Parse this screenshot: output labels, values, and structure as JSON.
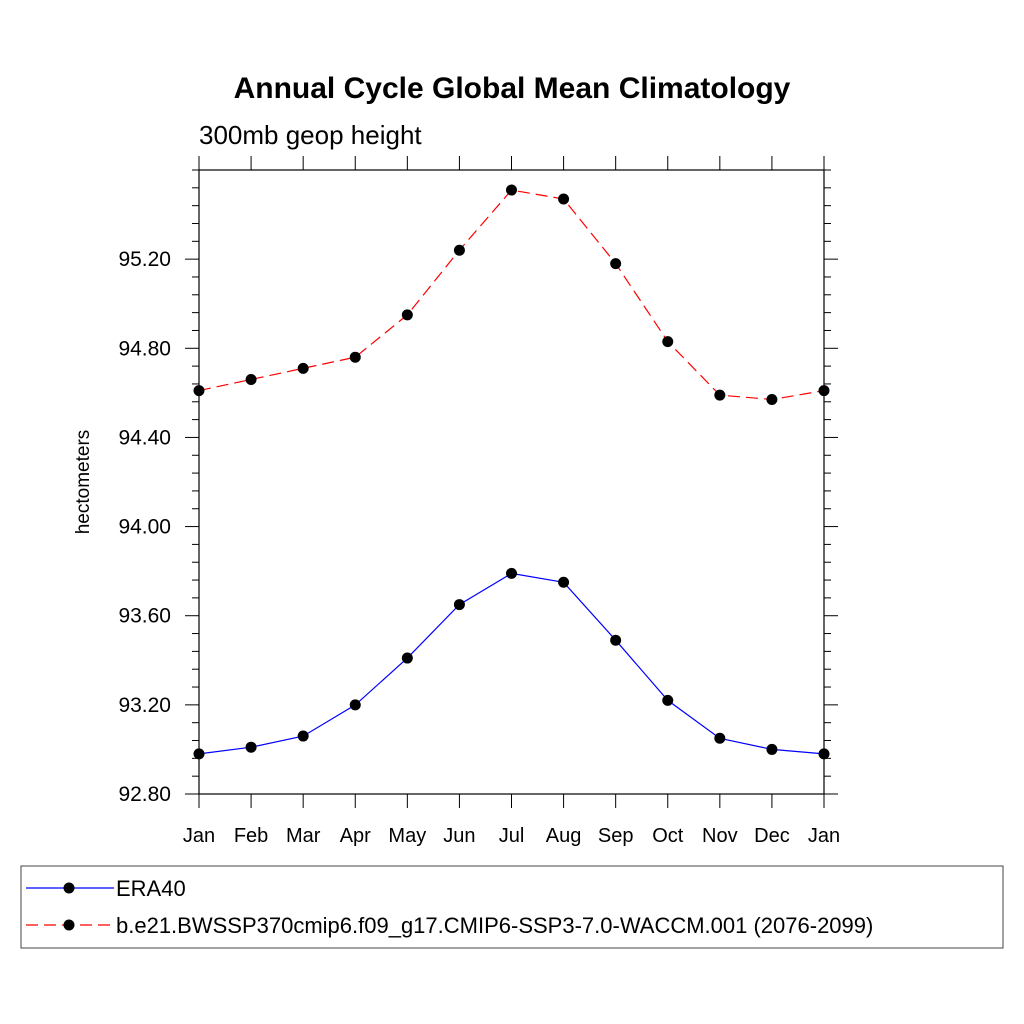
{
  "chart_data": {
    "type": "line",
    "title": "Annual Cycle Global Mean Climatology",
    "subtitle": "300mb geop height",
    "xlabel": "",
    "ylabel": "hectometers",
    "categories": [
      "Jan",
      "Feb",
      "Mar",
      "Apr",
      "May",
      "Jun",
      "Jul",
      "Aug",
      "Sep",
      "Oct",
      "Nov",
      "Dec",
      "Jan"
    ],
    "ylim": [
      92.8,
      95.6
    ],
    "yticks": [
      "92.80",
      "93.20",
      "93.60",
      "94.00",
      "94.40",
      "94.80",
      "95.20"
    ],
    "grid": false,
    "legend_position": "bottom",
    "series": [
      {
        "name": "ERA40",
        "style": "solid",
        "color": "#0000ff",
        "values": [
          92.98,
          93.01,
          93.06,
          93.2,
          93.41,
          93.65,
          93.79,
          93.75,
          93.49,
          93.22,
          93.05,
          93.0,
          92.98
        ]
      },
      {
        "name": "b.e21.BWSSP370cmip6.f09_g17.CMIP6-SSP3-7.0-WACCM.001 (2076-2099)",
        "style": "dashed",
        "color": "#ff0000",
        "values": [
          94.61,
          94.66,
          94.71,
          94.76,
          94.95,
          95.24,
          95.51,
          95.47,
          95.18,
          94.83,
          94.59,
          94.57,
          94.61
        ]
      }
    ]
  }
}
